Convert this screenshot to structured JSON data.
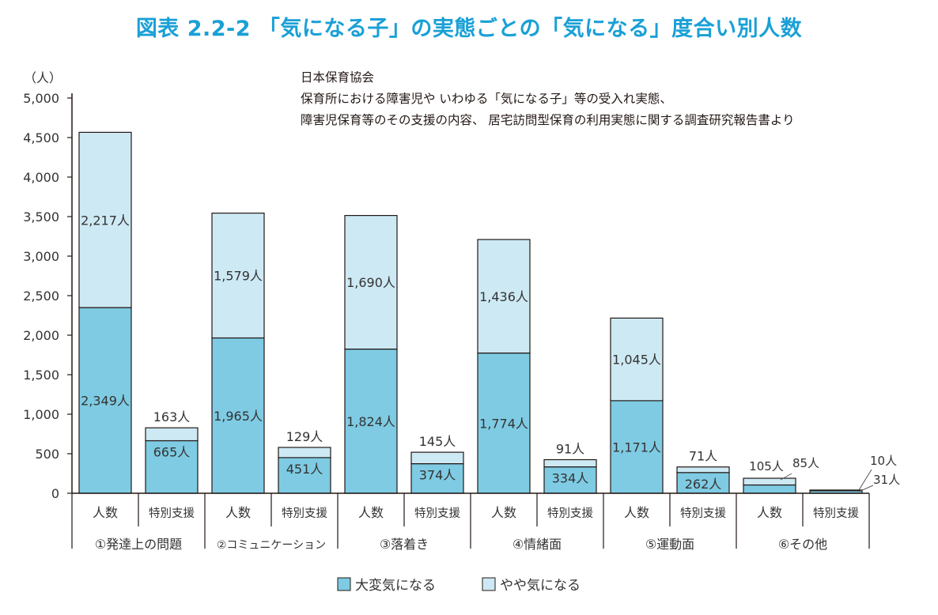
{
  "title": "図表 2.2-2 「気になる子」の実態ごとの「気になる」度合い別人数",
  "source": [
    "日本保育協会",
    "保育所における障害児や いわゆる「気になる子」等の受入れ実態、",
    "障害児保育等のその支援の内容、 居宅訪問型保育の利用実態に関する調査研究報告書より"
  ],
  "colors": {
    "dark": "#7ecbe3",
    "light": "#cde9f4",
    "stroke": "#231815"
  },
  "chart_data": {
    "type": "bar",
    "stacked": true,
    "ylabel": "（人）",
    "ylim": [
      0,
      5000
    ],
    "yticks": [
      0,
      500,
      1000,
      1500,
      2000,
      2500,
      3000,
      3500,
      4000,
      4500,
      5000
    ],
    "ytick_labels": [
      "0",
      "500",
      "1,000",
      "1,500",
      "2,000",
      "2,500",
      "3,000",
      "3,500",
      "4,000",
      "4,500",
      "5,000"
    ],
    "unit": "人",
    "groups": [
      {
        "label": "①発達上の問題",
        "bars": [
          {
            "label": "人数",
            "dark": 2349,
            "light": 2217,
            "dark_label": "2,349人",
            "light_label": "2,217人"
          },
          {
            "label": "特別支援",
            "dark": 665,
            "light": 163,
            "dark_label": "665人",
            "light_label": "163人"
          }
        ]
      },
      {
        "label": "②コミュニケーション",
        "bars": [
          {
            "label": "人数",
            "dark": 1965,
            "light": 1579,
            "dark_label": "1,965人",
            "light_label": "1,579人"
          },
          {
            "label": "特別支援",
            "dark": 451,
            "light": 129,
            "dark_label": "451人",
            "light_label": "129人"
          }
        ]
      },
      {
        "label": "③落着き",
        "bars": [
          {
            "label": "人数",
            "dark": 1824,
            "light": 1690,
            "dark_label": "1,824人",
            "light_label": "1,690人"
          },
          {
            "label": "特別支援",
            "dark": 374,
            "light": 145,
            "dark_label": "374人",
            "light_label": "145人"
          }
        ]
      },
      {
        "label": "④情緒面",
        "bars": [
          {
            "label": "人数",
            "dark": 1774,
            "light": 1436,
            "dark_label": "1,774人",
            "light_label": "1,436人"
          },
          {
            "label": "特別支援",
            "dark": 334,
            "light": 91,
            "dark_label": "334人",
            "light_label": "91人"
          }
        ]
      },
      {
        "label": "⑤運動面",
        "bars": [
          {
            "label": "人数",
            "dark": 1171,
            "light": 1045,
            "dark_label": "1,171人",
            "light_label": "1,045人"
          },
          {
            "label": "特別支援",
            "dark": 262,
            "light": 71,
            "dark_label": "262人",
            "light_label": "71人"
          }
        ]
      },
      {
        "label": "⑥その他",
        "bars": [
          {
            "label": "人数",
            "dark": 105,
            "light": 85,
            "dark_label": "105人",
            "light_label": "85人"
          },
          {
            "label": "特別支援",
            "dark": 31,
            "light": 10,
            "dark_label": "31人",
            "light_label": "10人"
          }
        ]
      }
    ],
    "legend": [
      "大変気になる",
      "やや気になる"
    ]
  }
}
